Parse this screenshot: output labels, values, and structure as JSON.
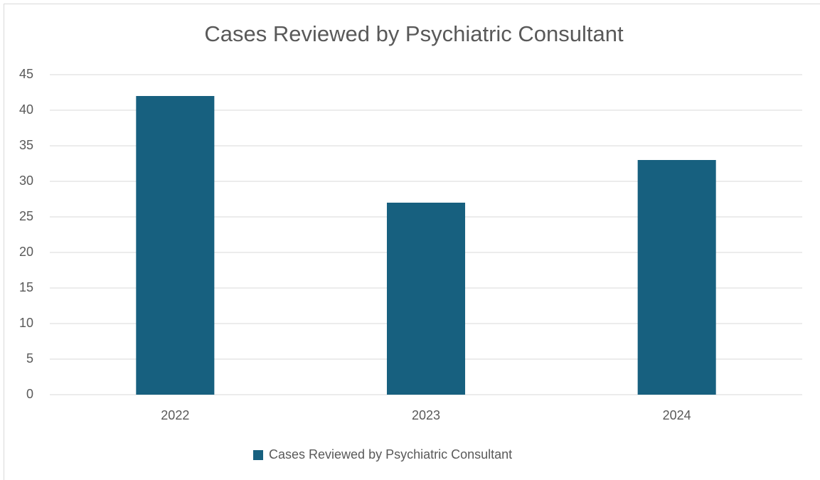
{
  "chart_data": {
    "type": "bar",
    "title": "Cases Reviewed by Psychiatric Consultant",
    "categories": [
      "2022",
      "2023",
      "2024"
    ],
    "series": [
      {
        "name": "Cases Reviewed by Psychiatric Consultant",
        "color": "#17607f",
        "values": [
          42,
          27,
          33
        ]
      }
    ],
    "ylim": [
      0,
      45
    ],
    "yticks": [
      0,
      5,
      10,
      15,
      20,
      25,
      30,
      35,
      40,
      45
    ],
    "grid": true,
    "legend": "bottom"
  }
}
